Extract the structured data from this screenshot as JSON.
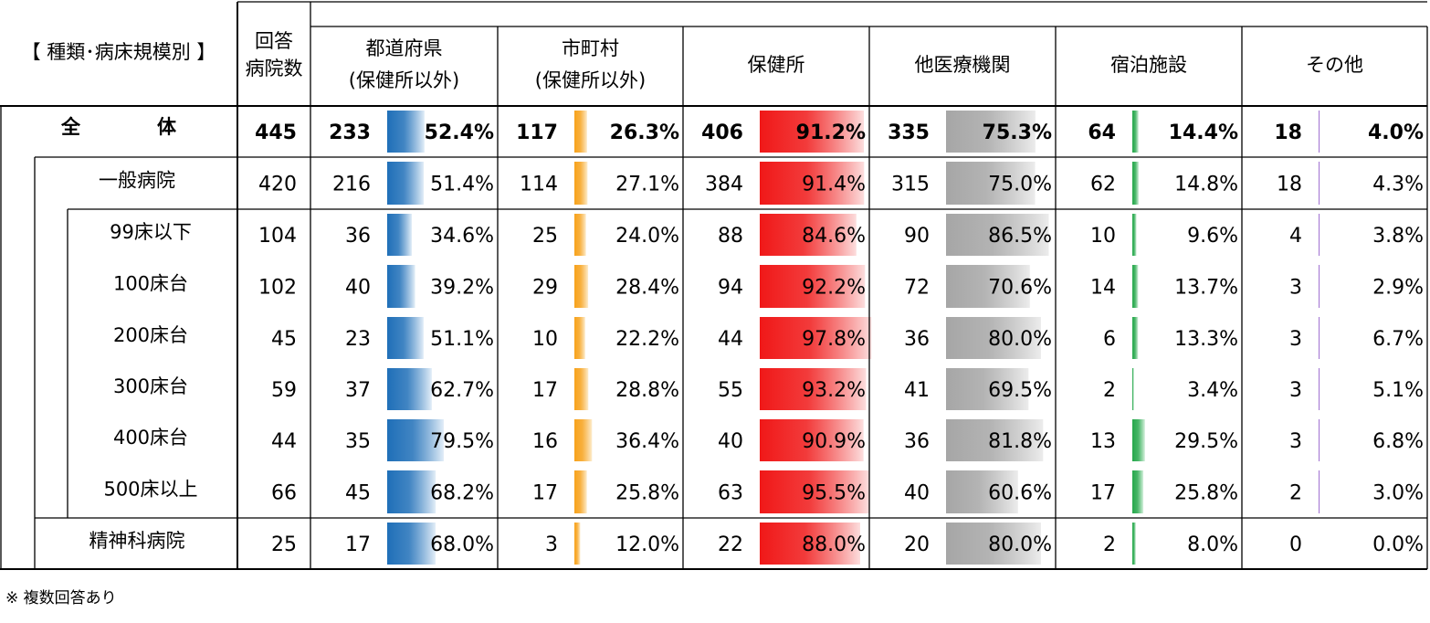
{
  "header": {
    "title": "【 種類･病床規模別 】",
    "count_label": [
      "回答",
      "病院数"
    ],
    "columns": [
      {
        "label": [
          "都道府県",
          "(保健所以外)"
        ],
        "color": "blue"
      },
      {
        "label": [
          "市町村",
          "(保健所以外)"
        ],
        "color": "orange"
      },
      {
        "label": [
          "保健所"
        ],
        "color": "red"
      },
      {
        "label": [
          "他医療機関"
        ],
        "color": "gray"
      },
      {
        "label": [
          "宿泊施設"
        ],
        "color": "green"
      },
      {
        "label": [
          "その他"
        ],
        "color": "purple"
      }
    ]
  },
  "bar_colors": {
    "blue": [
      "#1f6fb8",
      "#e3eef8"
    ],
    "orange": [
      "#f7a21b",
      "#fdeccc"
    ],
    "red": [
      "#f01818",
      "#fcdede"
    ],
    "gray": [
      "#a6a6a6",
      "#ececec"
    ],
    "green": [
      "#25a84b",
      "#d8f1df"
    ],
    "purple": [
      "#8b52c6",
      "#e9dcf5"
    ]
  },
  "chart_data": {
    "type": "table",
    "columns": [
      "回答病院数",
      "都道府県(保健所以外)",
      "市町村(保健所以外)",
      "保健所",
      "他医療機関",
      "宿泊施設",
      "その他"
    ],
    "rows": [
      {
        "label": "全　　　　体",
        "level": 0,
        "bold": true,
        "total": "445",
        "cells": [
          [
            "233",
            "52.4%",
            52.4
          ],
          [
            "117",
            "26.3%",
            26.3
          ],
          [
            "406",
            "91.2%",
            91.2
          ],
          [
            "335",
            "75.3%",
            75.3
          ],
          [
            "64",
            "14.4%",
            14.4
          ],
          [
            "18",
            "4.0%",
            4.0
          ]
        ]
      },
      {
        "label": "一般病院",
        "level": 1,
        "bold": false,
        "total": "420",
        "cells": [
          [
            "216",
            "51.4%",
            51.4
          ],
          [
            "114",
            "27.1%",
            27.1
          ],
          [
            "384",
            "91.4%",
            91.4
          ],
          [
            "315",
            "75.0%",
            75.0
          ],
          [
            "62",
            "14.8%",
            14.8
          ],
          [
            "18",
            "4.3%",
            4.3
          ]
        ]
      },
      {
        "label": "99床以下",
        "level": 2,
        "bold": false,
        "total": "104",
        "cells": [
          [
            "36",
            "34.6%",
            34.6
          ],
          [
            "25",
            "24.0%",
            24.0
          ],
          [
            "88",
            "84.6%",
            84.6
          ],
          [
            "90",
            "86.5%",
            86.5
          ],
          [
            "10",
            "9.6%",
            9.6
          ],
          [
            "4",
            "3.8%",
            3.8
          ]
        ]
      },
      {
        "label": "100床台",
        "level": 2,
        "bold": false,
        "total": "102",
        "cells": [
          [
            "40",
            "39.2%",
            39.2
          ],
          [
            "29",
            "28.4%",
            28.4
          ],
          [
            "94",
            "92.2%",
            92.2
          ],
          [
            "72",
            "70.6%",
            70.6
          ],
          [
            "14",
            "13.7%",
            13.7
          ],
          [
            "3",
            "2.9%",
            2.9
          ]
        ]
      },
      {
        "label": "200床台",
        "level": 2,
        "bold": false,
        "total": "45",
        "cells": [
          [
            "23",
            "51.1%",
            51.1
          ],
          [
            "10",
            "22.2%",
            22.2
          ],
          [
            "44",
            "97.8%",
            97.8
          ],
          [
            "36",
            "80.0%",
            80.0
          ],
          [
            "6",
            "13.3%",
            13.3
          ],
          [
            "3",
            "6.7%",
            6.7
          ]
        ]
      },
      {
        "label": "300床台",
        "level": 2,
        "bold": false,
        "total": "59",
        "cells": [
          [
            "37",
            "62.7%",
            62.7
          ],
          [
            "17",
            "28.8%",
            28.8
          ],
          [
            "55",
            "93.2%",
            93.2
          ],
          [
            "41",
            "69.5%",
            69.5
          ],
          [
            "2",
            "3.4%",
            3.4
          ],
          [
            "3",
            "5.1%",
            5.1
          ]
        ]
      },
      {
        "label": "400床台",
        "level": 2,
        "bold": false,
        "total": "44",
        "cells": [
          [
            "35",
            "79.5%",
            79.5
          ],
          [
            "16",
            "36.4%",
            36.4
          ],
          [
            "40",
            "90.9%",
            90.9
          ],
          [
            "36",
            "81.8%",
            81.8
          ],
          [
            "13",
            "29.5%",
            29.5
          ],
          [
            "3",
            "6.8%",
            6.8
          ]
        ]
      },
      {
        "label": "500床以上",
        "level": 2,
        "bold": false,
        "total": "66",
        "cells": [
          [
            "45",
            "68.2%",
            68.2
          ],
          [
            "17",
            "25.8%",
            25.8
          ],
          [
            "63",
            "95.5%",
            95.5
          ],
          [
            "40",
            "60.6%",
            60.6
          ],
          [
            "17",
            "25.8%",
            25.8
          ],
          [
            "2",
            "3.0%",
            3.0
          ]
        ]
      },
      {
        "label": "精神科病院",
        "level": 1,
        "bold": false,
        "total": "25",
        "cells": [
          [
            "17",
            "68.0%",
            68.0
          ],
          [
            "3",
            "12.0%",
            12.0
          ],
          [
            "22",
            "88.0%",
            88.0
          ],
          [
            "20",
            "80.0%",
            80.0
          ],
          [
            "2",
            "8.0%",
            8.0
          ],
          [
            "0",
            "0.0%",
            0.0
          ]
        ]
      }
    ]
  },
  "footnote": "※ 複数回答あり"
}
